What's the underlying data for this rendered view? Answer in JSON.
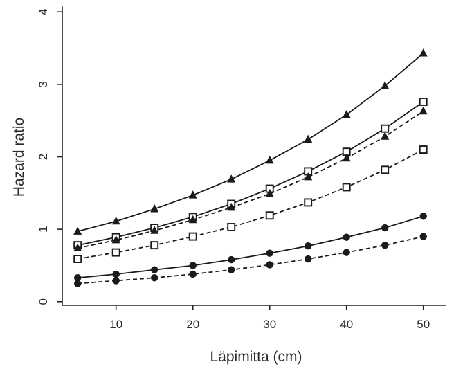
{
  "chart_data": {
    "type": "line",
    "title": "",
    "xlabel": "Läpimitta (cm)",
    "ylabel": "Hazard ratio",
    "xlim": [
      3,
      53
    ],
    "ylim": [
      -0.05,
      4.05
    ],
    "xticks": [
      10,
      20,
      30,
      40,
      50
    ],
    "yticks": [
      0,
      1,
      2,
      3,
      4
    ],
    "grid": false,
    "legend": "none",
    "x": [
      5,
      10,
      15,
      20,
      25,
      30,
      35,
      40,
      45,
      50
    ],
    "series": [
      {
        "marker": "triangle",
        "line": "solid",
        "values": [
          0.97,
          1.11,
          1.28,
          1.47,
          1.69,
          1.95,
          2.24,
          2.58,
          2.98,
          3.43
        ]
      },
      {
        "marker": "square",
        "line": "solid",
        "values": [
          0.78,
          0.89,
          1.02,
          1.17,
          1.35,
          1.56,
          1.8,
          2.07,
          2.39,
          2.76
        ]
      },
      {
        "marker": "triangle",
        "line": "dashed",
        "values": [
          0.74,
          0.85,
          0.98,
          1.13,
          1.3,
          1.49,
          1.72,
          1.98,
          2.28,
          2.63
        ]
      },
      {
        "marker": "square",
        "line": "dashed",
        "values": [
          0.59,
          0.68,
          0.78,
          0.9,
          1.03,
          1.19,
          1.37,
          1.58,
          1.82,
          2.1
        ]
      },
      {
        "marker": "circle",
        "line": "solid",
        "values": [
          0.33,
          0.38,
          0.44,
          0.5,
          0.58,
          0.67,
          0.77,
          0.89,
          1.02,
          1.18
        ]
      },
      {
        "marker": "circle",
        "line": "dashed",
        "values": [
          0.25,
          0.29,
          0.33,
          0.38,
          0.44,
          0.51,
          0.59,
          0.68,
          0.78,
          0.9
        ]
      }
    ],
    "colors": {
      "line": "#1a1a1a",
      "marker": "#1a1a1a",
      "axis": "#222222",
      "text": "#2b2b2b"
    }
  }
}
